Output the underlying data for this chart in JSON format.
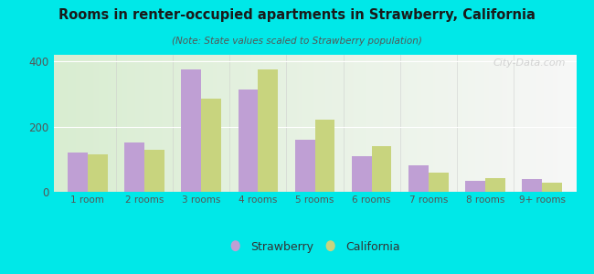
{
  "title": "Rooms in renter-occupied apartments in Strawberry, California",
  "subtitle": "(Note: State values scaled to Strawberry population)",
  "categories": [
    "1 room",
    "2 rooms",
    "3 rooms",
    "4 rooms",
    "5 rooms",
    "6 rooms",
    "7 rooms",
    "8 rooms",
    "9+ rooms"
  ],
  "strawberry_values": [
    120,
    150,
    375,
    315,
    160,
    110,
    80,
    35,
    38
  ],
  "california_values": [
    115,
    130,
    285,
    375,
    220,
    140,
    60,
    42,
    28
  ],
  "strawberry_color": "#bf9fd4",
  "california_color": "#c8d47e",
  "background_outer": "#00e8e8",
  "plot_bg_left": "#d8ecce",
  "plot_bg_right": "#f5f5ee",
  "ylim": [
    0,
    420
  ],
  "yticks": [
    0,
    200,
    400
  ],
  "bar_width": 0.35,
  "watermark": "City-Data.com"
}
